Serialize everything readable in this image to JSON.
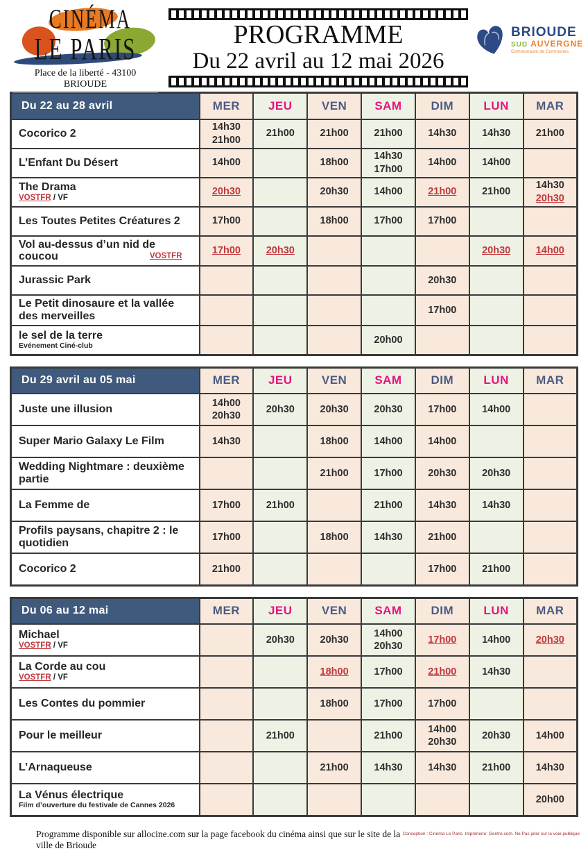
{
  "header": {
    "logo_line1": "CINÉMA",
    "logo_line2": "LE PARIS",
    "address": "Place de la liberté - 43100 BRIOUDE",
    "title": "PROGRAMME",
    "date_range": "Du 22 avril au 12 mai 2026",
    "partner": {
      "name": "BRIOUDE",
      "region1": "SUD",
      "region2": "AUVERGNE",
      "subtext": "Communauté de Communes"
    }
  },
  "colors": {
    "period_header_bg": "#3f5a7d",
    "day_blue": "#4a5b82",
    "day_pink": "#e6147d",
    "time_red": "#c0393d",
    "column_peach": "#f9e9dd",
    "column_green": "#eef2e5",
    "grid": "#3a3a3a"
  },
  "days": [
    {
      "label": "MER",
      "accent": "blue"
    },
    {
      "label": "JEU",
      "accent": "pink"
    },
    {
      "label": "VEN",
      "accent": "blue"
    },
    {
      "label": "SAM",
      "accent": "pink"
    },
    {
      "label": "DIM",
      "accent": "blue"
    },
    {
      "label": "LUN",
      "accent": "pink"
    },
    {
      "label": "MAR",
      "accent": "blue"
    }
  ],
  "tables": [
    {
      "period": "Du 22 au 28 avril",
      "films": [
        {
          "title": "Cocorico 2",
          "subtitle": null,
          "cells": [
            [
              {
                "time": "14h30"
              },
              {
                "time": "21h00"
              }
            ],
            [
              {
                "time": "21h00"
              }
            ],
            [
              {
                "time": "21h00"
              }
            ],
            [
              {
                "time": "21h00"
              }
            ],
            [
              {
                "time": "14h30"
              }
            ],
            [
              {
                "time": "14h30"
              }
            ],
            [
              {
                "time": "21h00"
              }
            ]
          ]
        },
        {
          "title": "L’Enfant Du Désert",
          "subtitle": null,
          "cells": [
            [
              {
                "time": "14h00"
              }
            ],
            [],
            [
              {
                "time": "18h00"
              }
            ],
            [
              {
                "time": "14h30"
              },
              {
                "time": "17h00"
              }
            ],
            [
              {
                "time": "14h00"
              }
            ],
            [
              {
                "time": "14h00"
              }
            ],
            []
          ]
        },
        {
          "title": "The Drama",
          "subtitle": {
            "type": "vostfr-vf",
            "vostfr": "VOSTFR",
            "after": "/ VF"
          },
          "cells": [
            [
              {
                "time": "20h30",
                "vostfr": true
              }
            ],
            [],
            [
              {
                "time": "20h30"
              }
            ],
            [
              {
                "time": "14h00"
              }
            ],
            [
              {
                "time": "21h00",
                "vostfr": true
              }
            ],
            [
              {
                "time": "21h00"
              }
            ],
            [
              {
                "time": "14h30"
              },
              {
                "time": "20h30",
                "vostfr": true
              }
            ]
          ]
        },
        {
          "title": "Les Toutes Petites Créatures 2",
          "subtitle": null,
          "cells": [
            [
              {
                "time": "17h00"
              }
            ],
            [],
            [
              {
                "time": "18h00"
              }
            ],
            [
              {
                "time": "17h00"
              }
            ],
            [
              {
                "time": "17h00"
              }
            ],
            [],
            []
          ]
        },
        {
          "title": "Vol au-dessus d’un nid de coucou",
          "subtitle": {
            "type": "vostfr-inline",
            "vostfr": "VOSTFR"
          },
          "cells": [
            [
              {
                "time": "17h00",
                "vostfr": true
              }
            ],
            [
              {
                "time": "20h30",
                "vostfr": true
              }
            ],
            [],
            [],
            [],
            [
              {
                "time": "20h30",
                "vostfr": true
              }
            ],
            [
              {
                "time": "14h00",
                "vostfr": true
              }
            ]
          ]
        },
        {
          "title": "Jurassic Park",
          "subtitle": null,
          "cells": [
            [],
            [],
            [],
            [],
            [
              {
                "time": "20h30"
              }
            ],
            [],
            []
          ]
        },
        {
          "title": "Le Petit dinosaure et la vallée des merveilles",
          "subtitle": null,
          "cells": [
            [],
            [],
            [],
            [],
            [
              {
                "time": "17h00"
              }
            ],
            [],
            []
          ]
        },
        {
          "title": "le sel de la terre",
          "subtitle": {
            "type": "note",
            "text": "Evénement Ciné-club"
          },
          "cells": [
            [],
            [],
            [],
            [
              {
                "time": "20h00"
              }
            ],
            [],
            [],
            []
          ]
        }
      ]
    },
    {
      "period": "Du 29 avril au 05 mai",
      "films": [
        {
          "title": "Juste une illusion",
          "subtitle": null,
          "cells": [
            [
              {
                "time": "14h00"
              },
              {
                "time": "20h30"
              }
            ],
            [
              {
                "time": "20h30"
              }
            ],
            [
              {
                "time": "20h30"
              }
            ],
            [
              {
                "time": "20h30"
              }
            ],
            [
              {
                "time": "17h00"
              }
            ],
            [
              {
                "time": "14h00"
              }
            ],
            []
          ]
        },
        {
          "title": "Super Mario Galaxy Le Film",
          "subtitle": null,
          "cells": [
            [
              {
                "time": "14h30"
              }
            ],
            [],
            [
              {
                "time": "18h00"
              }
            ],
            [
              {
                "time": "14h00"
              }
            ],
            [
              {
                "time": "14h00"
              }
            ],
            [],
            []
          ]
        },
        {
          "title": "Wedding Nightmare : deuxième partie",
          "subtitle": null,
          "cells": [
            [],
            [],
            [
              {
                "time": "21h00"
              }
            ],
            [
              {
                "time": "17h00"
              }
            ],
            [
              {
                "time": "20h30"
              }
            ],
            [
              {
                "time": "20h30"
              }
            ],
            []
          ]
        },
        {
          "title": "La Femme de",
          "subtitle": null,
          "cells": [
            [
              {
                "time": "17h00"
              }
            ],
            [
              {
                "time": "21h00"
              }
            ],
            [],
            [
              {
                "time": "21h00"
              }
            ],
            [
              {
                "time": "14h30"
              }
            ],
            [
              {
                "time": "14h30"
              }
            ],
            []
          ]
        },
        {
          "title": "Profils paysans, chapitre 2 : le quotidien",
          "subtitle": null,
          "cells": [
            [
              {
                "time": "17h00"
              }
            ],
            [],
            [
              {
                "time": "18h00"
              }
            ],
            [
              {
                "time": "14h30"
              }
            ],
            [
              {
                "time": "21h00"
              }
            ],
            [],
            []
          ]
        },
        {
          "title": "Cocorico 2",
          "subtitle": null,
          "cells": [
            [
              {
                "time": "21h00"
              }
            ],
            [],
            [],
            [],
            [
              {
                "time": "17h00"
              }
            ],
            [
              {
                "time": "21h00"
              }
            ],
            []
          ]
        }
      ]
    },
    {
      "period": "Du 06 au 12 mai",
      "films": [
        {
          "title": "Michael",
          "subtitle": {
            "type": "vostfr-vf",
            "vostfr": "VOSTFR",
            "after": "/ VF"
          },
          "cells": [
            [],
            [
              {
                "time": "20h30"
              }
            ],
            [
              {
                "time": "20h30"
              }
            ],
            [
              {
                "time": "14h00"
              },
              {
                "time": "20h30"
              }
            ],
            [
              {
                "time": "17h00",
                "vostfr": true
              }
            ],
            [
              {
                "time": "14h00"
              }
            ],
            [
              {
                "time": "20h30",
                "vostfr": true
              }
            ]
          ]
        },
        {
          "title": "La Corde au cou",
          "subtitle": {
            "type": "vostfr-vf",
            "vostfr": "VOSTFR",
            "after": "/ VF"
          },
          "cells": [
            [],
            [],
            [
              {
                "time": "18h00",
                "vostfr": true
              }
            ],
            [
              {
                "time": "17h00"
              }
            ],
            [
              {
                "time": "21h00",
                "vostfr": true
              }
            ],
            [
              {
                "time": "14h30"
              }
            ],
            []
          ]
        },
        {
          "title": "Les Contes du pommier",
          "subtitle": null,
          "cells": [
            [],
            [],
            [
              {
                "time": "18h00"
              }
            ],
            [
              {
                "time": "17h00"
              }
            ],
            [
              {
                "time": "17h00"
              }
            ],
            [],
            []
          ]
        },
        {
          "title": "Pour le meilleur",
          "subtitle": null,
          "cells": [
            [],
            [
              {
                "time": "21h00"
              }
            ],
            [],
            [
              {
                "time": "21h00"
              }
            ],
            [
              {
                "time": "14h00"
              },
              {
                "time": "20h30"
              }
            ],
            [
              {
                "time": "20h30"
              }
            ],
            [
              {
                "time": "14h00"
              }
            ]
          ]
        },
        {
          "title": "L’Arnaqueuse",
          "subtitle": null,
          "cells": [
            [],
            [],
            [
              {
                "time": "21h00"
              }
            ],
            [
              {
                "time": "14h30"
              }
            ],
            [
              {
                "time": "14h30"
              }
            ],
            [
              {
                "time": "21h00"
              }
            ],
            [
              {
                "time": "14h30"
              }
            ]
          ]
        },
        {
          "title": "La Vénus électrique",
          "subtitle": {
            "type": "note",
            "text": "Film d’ouverture du festivale de Cannes 2026"
          },
          "cells": [
            [],
            [],
            [],
            [],
            [],
            [],
            [
              {
                "time": "20h00"
              }
            ]
          ]
        }
      ]
    }
  ],
  "footer": {
    "left": "Programme disponible sur allocine.com sur la page facebook du cinéma ainsi que sur le site de la ville de Brioude",
    "right": "Conception : Cinéma Le Paris. Imprimerie: Gentre.com. Ne Pas jeter sur la voie publique"
  }
}
